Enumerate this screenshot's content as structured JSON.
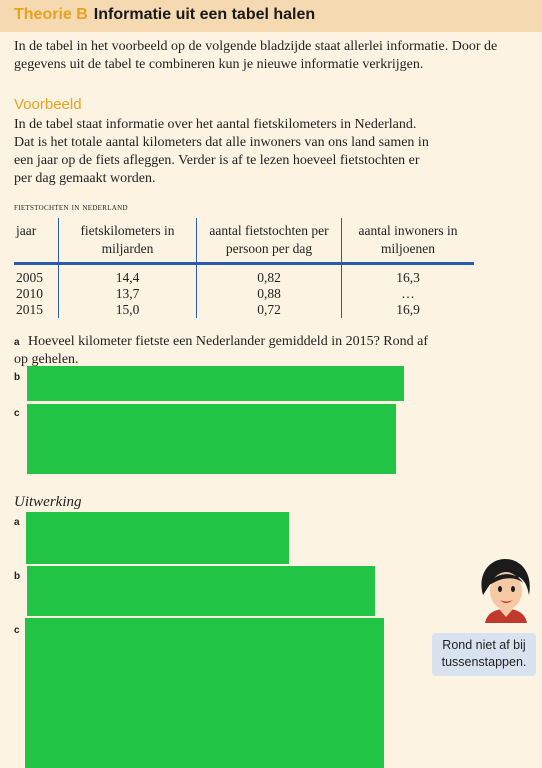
{
  "header": {
    "label": "Theorie B",
    "title": "Informatie uit een tabel halen"
  },
  "intro": "In de tabel in het voorbeeld op de volgende bladzijde staat allerlei informatie. Door de gegevens uit de tabel te combineren kun je nieuwe informatie verkrijgen.",
  "voorbeeld": {
    "title": "Voorbeeld",
    "text": "In de tabel staat informatie over het aantal fietskilometers in Nederland. Dat is het totale aantal kilometers dat alle inwoners van ons land samen in een jaar op de fiets afleggen. Verder is af te lezen hoeveel fietstochten er per dag gemaakt worden."
  },
  "table": {
    "caption": "fietstochten in nederland",
    "headers": [
      "jaar",
      "fietskilometers in miljarden",
      "aantal fietstochten per persoon per dag",
      "aantal inwoners in miljoenen"
    ],
    "rows": [
      [
        "2005",
        "14,4",
        "0,82",
        "16,3"
      ],
      [
        "2010",
        "13,7",
        "0,88",
        "…"
      ],
      [
        "2015",
        "15,0",
        "0,72",
        "16,9"
      ]
    ]
  },
  "questions": {
    "a": {
      "marker": "a",
      "text": "Hoeveel kilometer fietste een Nederlander gemiddeld in 2015? Rond af op gehelen."
    },
    "b": {
      "marker": "b"
    },
    "c": {
      "marker": "c"
    }
  },
  "uitwerking": {
    "title": "Uitwerking",
    "markers": {
      "a": "a",
      "b": "b",
      "c": "c"
    }
  },
  "tip": "Rond niet af bij tussenstappen.",
  "colors": {
    "accent": "#e8a21c",
    "redaction": "#21c444",
    "table_rule": "#2b5ca8",
    "bubble": "#d9e3f0"
  }
}
